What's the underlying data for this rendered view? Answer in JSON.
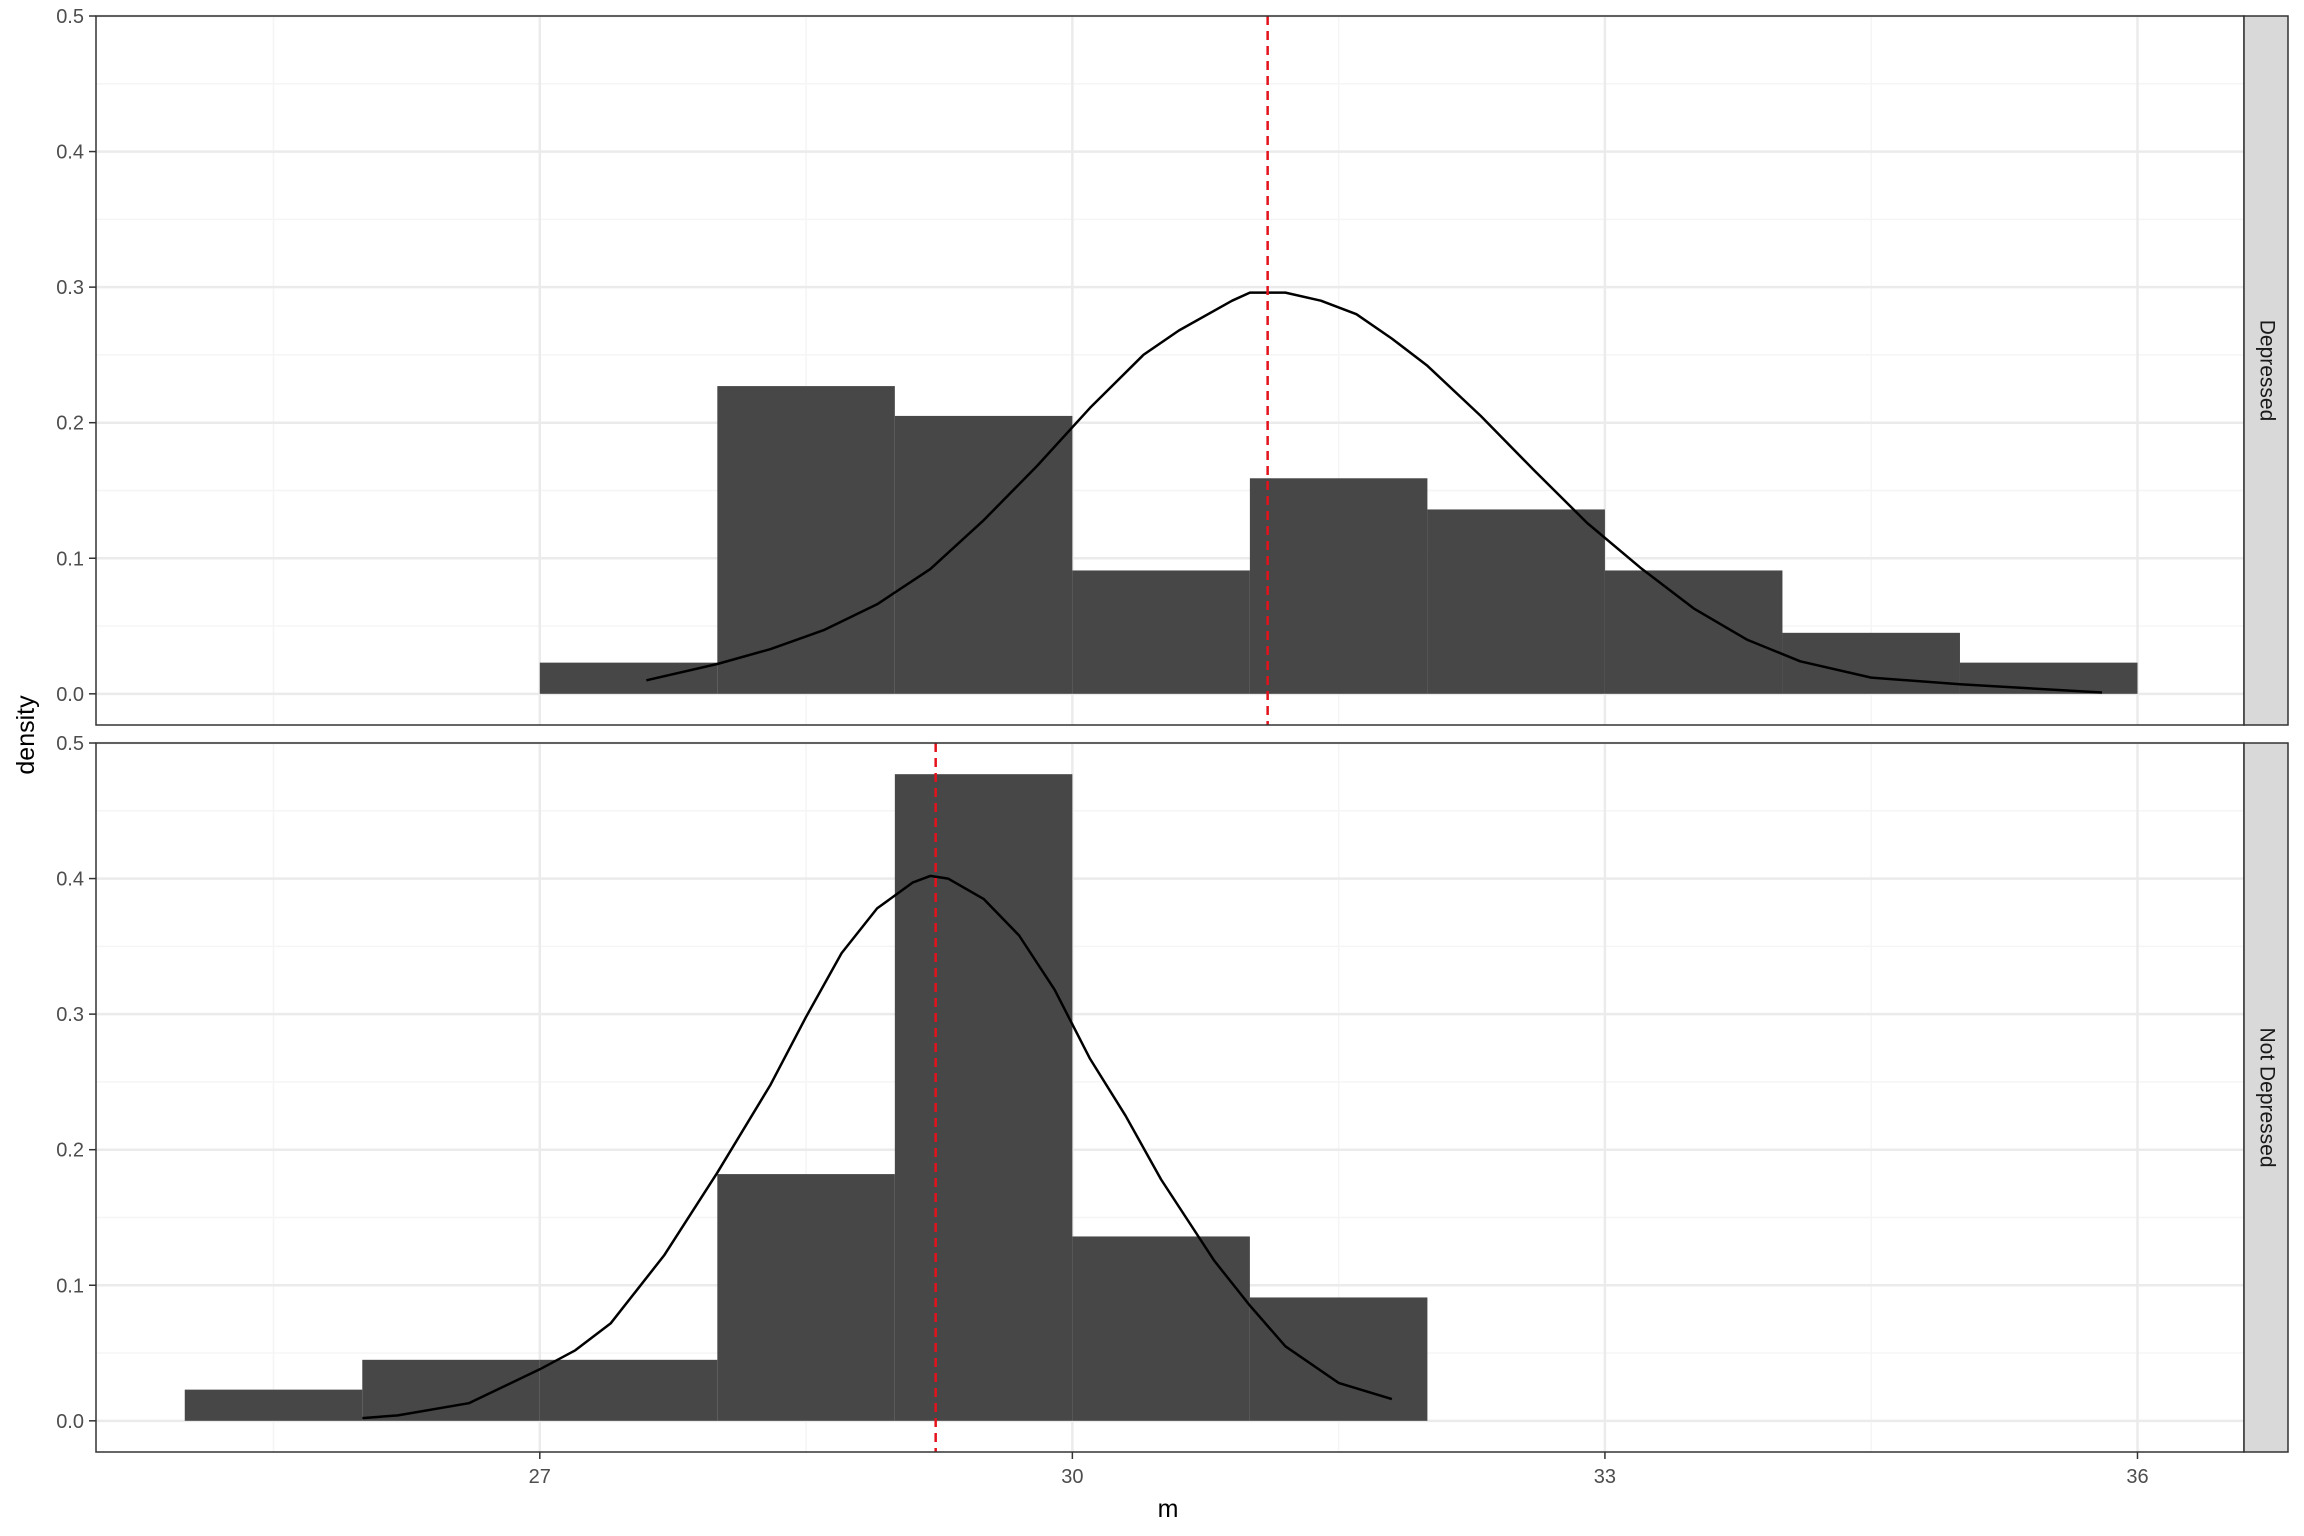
{
  "colors": {
    "bar_fill": "#474747",
    "curve": "#000000",
    "mean_line": "#e3121b",
    "grid_major": "#ebebeb",
    "grid_minor": "#f5f5f5",
    "panel_border": "#333333",
    "strip_fill": "#d9d9d9",
    "background": "#ffffff"
  },
  "chart_data": {
    "type": "bar",
    "subtype": "faceted histogram with density curve and mean line",
    "xlabel": "m",
    "ylabel": "density",
    "xlim": [
      24.5,
      36.6
    ],
    "ylim": [
      -0.023,
      0.5
    ],
    "x_ticks": [
      27,
      30,
      33,
      36
    ],
    "x_minor_ticks": [
      25.5,
      28.5,
      31.5,
      34.5
    ],
    "y_ticks": [
      0.0,
      0.1,
      0.2,
      0.3,
      0.4,
      0.5
    ],
    "y_tick_labels": [
      "0.0",
      "0.1",
      "0.2",
      "0.3",
      "0.4",
      "0.5"
    ],
    "grid": true,
    "facet": "rows",
    "panels": [
      {
        "label": "Depressed",
        "bins": [
          {
            "x0": 27,
            "x1": 28,
            "density": 0.023
          },
          {
            "x0": 28,
            "x1": 29,
            "density": 0.227
          },
          {
            "x0": 29,
            "x1": 30,
            "density": 0.205
          },
          {
            "x0": 30,
            "x1": 31,
            "density": 0.091
          },
          {
            "x0": 31,
            "x1": 32,
            "density": 0.159
          },
          {
            "x0": 32,
            "x1": 33,
            "density": 0.136
          },
          {
            "x0": 33,
            "x1": 34,
            "density": 0.091
          },
          {
            "x0": 34,
            "x1": 35,
            "density": 0.045
          },
          {
            "x0": 35,
            "x1": 36,
            "density": 0.023
          }
        ],
        "mean": 31.1,
        "curve": {
          "x": [
            27.6,
            28.0,
            28.3,
            28.6,
            28.9,
            29.2,
            29.5,
            29.8,
            30.1,
            30.4,
            30.6,
            30.9,
            31.0,
            31.2,
            31.4,
            31.6,
            31.8,
            32.0,
            32.3,
            32.6,
            32.9,
            33.2,
            33.5,
            33.8,
            34.1,
            34.5,
            35.0,
            35.8
          ],
          "y": [
            0.01,
            0.022,
            0.033,
            0.047,
            0.066,
            0.092,
            0.128,
            0.168,
            0.211,
            0.25,
            0.268,
            0.29,
            0.296,
            0.296,
            0.29,
            0.28,
            0.262,
            0.242,
            0.205,
            0.165,
            0.126,
            0.093,
            0.063,
            0.04,
            0.024,
            0.012,
            0.007,
            0.001
          ]
        }
      },
      {
        "label": "Not Depressed",
        "bins": [
          {
            "x0": 25,
            "x1": 26,
            "density": 0.023
          },
          {
            "x0": 26,
            "x1": 27,
            "density": 0.045
          },
          {
            "x0": 27,
            "x1": 28,
            "density": 0.045
          },
          {
            "x0": 28,
            "x1": 29,
            "density": 0.182
          },
          {
            "x0": 29,
            "x1": 30,
            "density": 0.477
          },
          {
            "x0": 30,
            "x1": 31,
            "density": 0.136
          },
          {
            "x0": 31,
            "x1": 32,
            "density": 0.091
          }
        ],
        "mean": 29.23,
        "curve": {
          "x": [
            26.0,
            26.2,
            26.6,
            27.0,
            27.2,
            27.4,
            27.7,
            28.0,
            28.3,
            28.5,
            28.7,
            28.9,
            29.1,
            29.2,
            29.3,
            29.5,
            29.7,
            29.9,
            30.1,
            30.3,
            30.5,
            30.8,
            31.0,
            31.2,
            31.5,
            31.8
          ],
          "y": [
            0.002,
            0.004,
            0.013,
            0.038,
            0.052,
            0.072,
            0.122,
            0.183,
            0.248,
            0.298,
            0.345,
            0.378,
            0.397,
            0.402,
            0.4,
            0.385,
            0.358,
            0.318,
            0.267,
            0.225,
            0.178,
            0.118,
            0.085,
            0.055,
            0.028,
            0.016
          ]
        }
      }
    ]
  }
}
